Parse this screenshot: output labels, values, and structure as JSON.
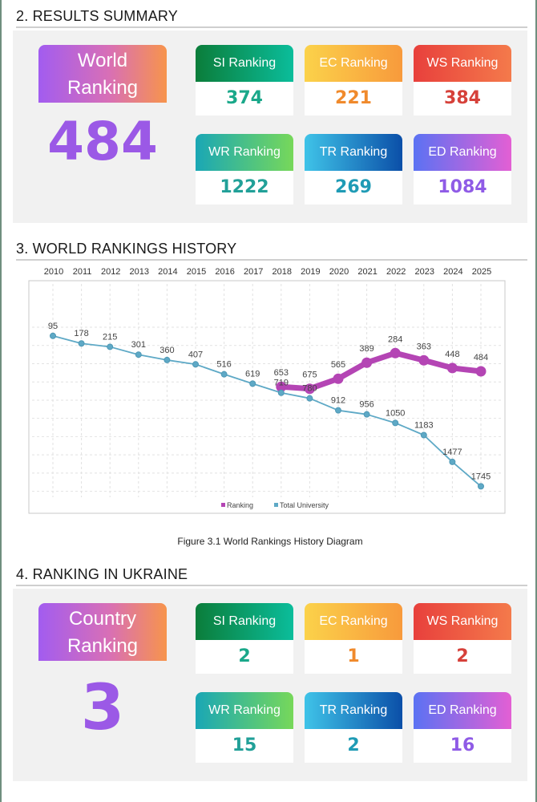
{
  "sections": {
    "results_title": "2. RESULTS SUMMARY",
    "history_title": "3. WORLD RANKINGS HISTORY",
    "ukraine_title": "4. RANKING IN UKRAINE"
  },
  "world": {
    "label_line1": "World",
    "label_line2": "Ranking",
    "value": "484",
    "cards": [
      {
        "label": "SI Ranking",
        "value": "374",
        "color": "#1aa88a"
      },
      {
        "label": "EC Ranking",
        "value": "221",
        "color": "#f08a2c"
      },
      {
        "label": "WS Ranking",
        "value": "384",
        "color": "#d6413a"
      },
      {
        "label": "WR Ranking",
        "value": "1222",
        "color": "#21a098"
      },
      {
        "label": "TR Ranking",
        "value": "269",
        "color": "#1f9bb5"
      },
      {
        "label": "ED Ranking",
        "value": "1084",
        "color": "#8f5be6"
      }
    ]
  },
  "country": {
    "label_line1": "Country",
    "label_line2": "Ranking",
    "value": "3",
    "cards": [
      {
        "label": "SI Ranking",
        "value": "2",
        "color": "#1aa88a"
      },
      {
        "label": "EC Ranking",
        "value": "1",
        "color": "#f08a2c"
      },
      {
        "label": "WS Ranking",
        "value": "2",
        "color": "#d6413a"
      },
      {
        "label": "WR Ranking",
        "value": "15",
        "color": "#21a098"
      },
      {
        "label": "TR Ranking",
        "value": "2",
        "color": "#1f9bb5"
      },
      {
        "label": "ED Ranking",
        "value": "16",
        "color": "#8f5be6"
      }
    ]
  },
  "caption": "Figure 3.1 World Rankings History Diagram",
  "chart_data": {
    "type": "line",
    "x": [
      2010,
      2011,
      2012,
      2013,
      2014,
      2015,
      2016,
      2017,
      2018,
      2019,
      2020,
      2021,
      2022,
      2023,
      2024,
      2025
    ],
    "categories": [
      "2010",
      "2011",
      "2012",
      "2013",
      "2014",
      "2015",
      "2016",
      "2017",
      "2018",
      "2019",
      "2020",
      "2021",
      "2022",
      "2023",
      "2024",
      "2025"
    ],
    "series": [
      {
        "name": "Ranking",
        "color": "#b445b4",
        "values": [
          null,
          null,
          null,
          null,
          null,
          null,
          null,
          null,
          653,
          675,
          565,
          389,
          284,
          363,
          448,
          484
        ],
        "labels": [
          "",
          "",
          "",
          "",
          "",
          "",
          "",
          "",
          "653",
          "675",
          "565",
          "389",
          "284",
          "363",
          "448",
          "484"
        ]
      },
      {
        "name": "Total University",
        "color": "#5ea9c6",
        "values": [
          95,
          178,
          215,
          301,
          360,
          407,
          516,
          619,
          719,
          780,
          912,
          956,
          1050,
          1183,
          1477,
          1745
        ],
        "labels": [
          "95",
          "178",
          "215",
          "301",
          "360",
          "407",
          "516",
          "619",
          "719",
          "780",
          "912",
          "956",
          "1050",
          "1183",
          "1477",
          "1745"
        ]
      }
    ],
    "ylim": [
      0,
      1900
    ],
    "y_inverted": true,
    "grid": true,
    "legend": "bottom"
  }
}
